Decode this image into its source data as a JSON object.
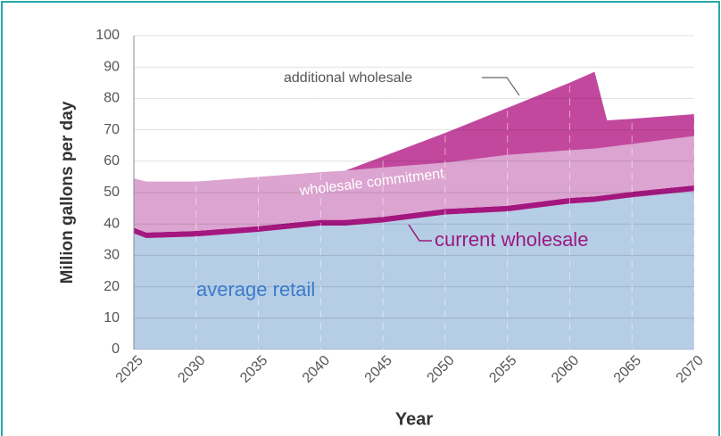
{
  "chart_data": {
    "type": "stacked_area",
    "x_label": "Year",
    "y_label": "Million gallons per day",
    "x": [
      2025,
      2026,
      2030,
      2035,
      2040,
      2042,
      2045,
      2050,
      2055,
      2060,
      2062,
      2063,
      2065,
      2070
    ],
    "series": [
      {
        "name": "average retail",
        "color": "#b5cde5",
        "values": [
          37,
          35.5,
          36,
          37.5,
          39.5,
          39.5,
          40.5,
          43,
          44,
          46.5,
          47,
          47.5,
          48.5,
          50.5
        ]
      },
      {
        "name": "current wholesale",
        "color": "#a3177f",
        "values": [
          1.8,
          1.8,
          1.8,
          1.8,
          1.8,
          1.8,
          1.8,
          1.8,
          1.8,
          1.8,
          1.8,
          1.8,
          1.8,
          1.8
        ]
      },
      {
        "name": "wholesale commitment",
        "color": "#dca4d0",
        "values": [
          15.7,
          16.2,
          15.7,
          15.7,
          15.2,
          15.7,
          15.7,
          14.7,
          16.2,
          15.2,
          15.2,
          15.2,
          15.2,
          15.7
        ]
      },
      {
        "name": "additional wholesale",
        "color": "#c2489e",
        "values": [
          0,
          0,
          0,
          0,
          0,
          0,
          3.5,
          9.5,
          15,
          21.5,
          24.5,
          8.5,
          8,
          7
        ]
      }
    ],
    "xlim": [
      2025,
      2070
    ],
    "xticks": [
      2025,
      2030,
      2035,
      2040,
      2045,
      2050,
      2055,
      2060,
      2065,
      2070
    ],
    "ylim": [
      0,
      100
    ],
    "yticks": [
      0,
      10,
      20,
      30,
      40,
      50,
      60,
      70,
      80,
      90,
      100
    ],
    "grid": true
  }
}
